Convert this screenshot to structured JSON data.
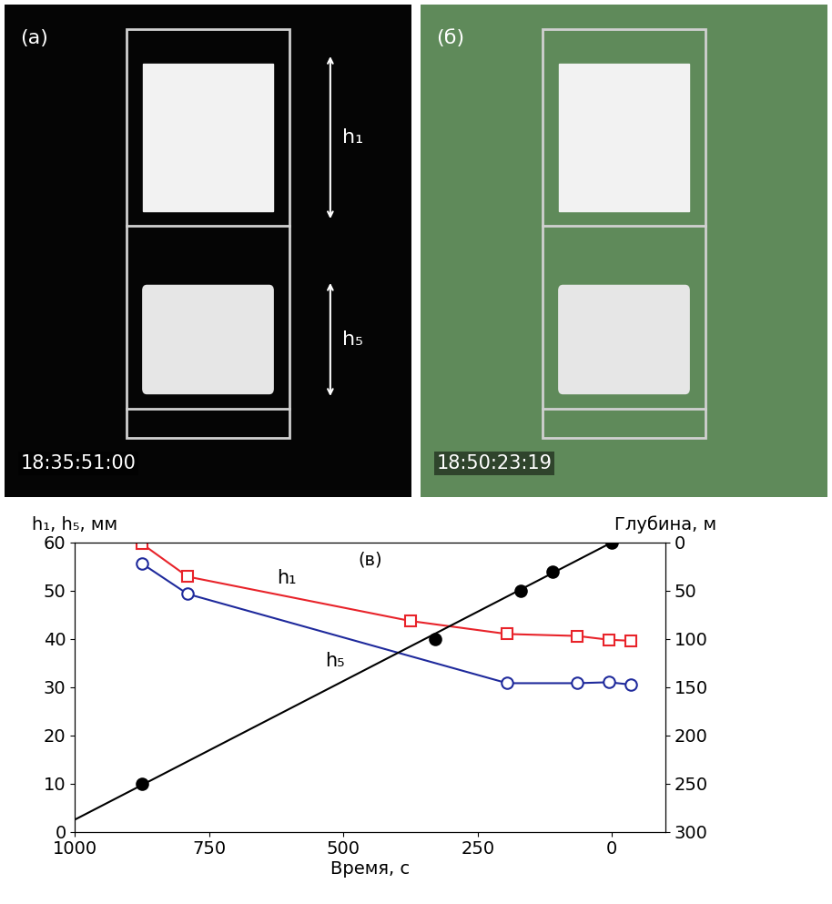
{
  "panels": [
    {
      "label": "(а)",
      "timestamp": "18:35:51:00",
      "annotations": [
        "h₁",
        "h₅"
      ],
      "color": "#050505"
    },
    {
      "label": "(б)",
      "timestamp": "18:50:23:19",
      "annotations": [],
      "color": "#5f8a5a"
    }
  ],
  "chart_data": {
    "type": "line",
    "label": "(в)",
    "x_label": "Время, с",
    "y_label": "h₁, h₅, мм",
    "y2_label": "Глубина, м",
    "xlim": [
      1000,
      -100
    ],
    "xticks": [
      1000,
      750,
      500,
      250,
      0
    ],
    "ylim": [
      0,
      60
    ],
    "yticks": [
      0,
      10,
      20,
      30,
      40,
      50,
      60
    ],
    "y2lim": [
      300,
      0
    ],
    "y2ticks": [
      0,
      50,
      100,
      150,
      200,
      250,
      300
    ],
    "series": [
      {
        "name": "h₁",
        "color": "#e8232a",
        "marker": "square",
        "line_style": "solid",
        "x": [
          875,
          790,
          375,
          195,
          65,
          5,
          -35
        ],
        "values": [
          59.7,
          52.9,
          43.7,
          41.0,
          40.6,
          39.8,
          39.6
        ]
      },
      {
        "name": "h₅",
        "color": "#1f2a9c",
        "marker": "circle",
        "line_style": "solid",
        "x": [
          875,
          790,
          195,
          65,
          5,
          -35
        ],
        "values": [
          55.6,
          49.3,
          30.8,
          30.8,
          31.0,
          30.5
        ]
      },
      {
        "color": "#000000",
        "marker": "filled_circle",
        "line_style": "none",
        "axis": "y2",
        "x": [
          875,
          330,
          170,
          110,
          0
        ],
        "values": [
          250,
          100,
          50,
          30,
          0
        ]
      },
      {
        "color": "#000000",
        "marker": "none",
        "line_style": "solid",
        "axis": "y2",
        "x": [
          1000,
          0
        ],
        "values": [
          287.5,
          0
        ]
      }
    ]
  }
}
